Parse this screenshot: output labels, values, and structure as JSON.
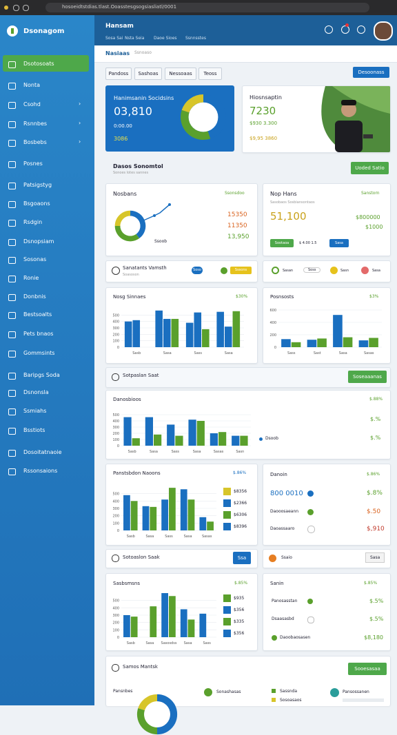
{
  "browser": {
    "url": "hosoeidtstdias.tlast.Ooasstesgsogsiasliatl/0001"
  },
  "sidebar": {
    "brand": "Dsonagom",
    "items": [
      "Dsotosoats",
      "Nonta",
      "Csohd",
      "Rsnnbes",
      "Bosbebs",
      "Posnes",
      "Patsigstyg",
      "Bsgoaons",
      "Rsdgin",
      "Dsnopsiam",
      "Sosonas",
      "Ronie",
      "Donbnis",
      "Bestsoalts",
      "Pets bnaos",
      "Gommsints",
      "Baripgs Soda",
      "Dsnonsla",
      "Ssmiahs",
      "Bsstiots",
      "Dosoitatnaoie",
      "Rssonsaions"
    ]
  },
  "header": {
    "title": "Hansam",
    "links": [
      "Sosa Sai",
      "Nsta Seia",
      "Daoe Sioes",
      "Ssnnsstes"
    ]
  },
  "tabs": {
    "active": "Nasiaas",
    "other": "Ssnoaso"
  },
  "filters": [
    "Pandoss",
    "Sashoas",
    "Nessoaas",
    "Teoss"
  ],
  "primary_button": "Desoonass",
  "hero": {
    "title": "Hanimsanin Socidsins",
    "value": "03,810",
    "sub": "0:00.00",
    "foot": "3086",
    "donut": {
      "values": [
        45,
        35,
        20
      ],
      "colors": [
        "#1a6fc0",
        "#5aa02c",
        "#d7c52a"
      ]
    }
  },
  "profile": {
    "title": "Hiosnsaptin",
    "value": "7230",
    "line1": "$930 3.300",
    "line2": "$9,95 3860"
  },
  "section1": {
    "title": "Dasos Sonomtol",
    "sub": "Sonoes lotes sannes",
    "button": "Uoded Satio"
  },
  "nosbans": {
    "title": "Nosbans",
    "tag": "Ssonsdoo",
    "caption": "Ssoob",
    "values": [
      "15350",
      "11350",
      "13,950"
    ],
    "donut": {
      "values": [
        40,
        35,
        25
      ],
      "colors": [
        "#1a6fc0",
        "#5aa02c",
        "#d7c52a"
      ]
    }
  },
  "nophans": {
    "title": "Nop Hans",
    "tag": "Sanstorn",
    "sub": "Sasobaos Sosbiansontaos",
    "value": "51,100",
    "right1": "$800000",
    "right2": "$1000",
    "btn1": "Sootaoa",
    "btn2": "Sasa",
    "mid": "$ 4.00 1.5"
  },
  "chips_left": {
    "title": "Sanatants Vamsth",
    "sub": "Soasoson",
    "chips": [
      "Soso",
      "Sssons"
    ]
  },
  "chips_right": {
    "chips": [
      "Sasan",
      "Soss",
      "Sasn",
      "Sasa"
    ]
  },
  "charts": {
    "sales": {
      "title": "Nosg Sinnaes",
      "badge": "$30%",
      "categories": [
        "Sasb",
        "Sasa",
        "Sass",
        "Sasa"
      ],
      "ylim": [
        0,
        600
      ],
      "yticks": [
        0,
        100,
        200,
        300,
        400,
        500
      ],
      "series": [
        {
          "color": "#1a6fc0",
          "values": [
            400,
            570,
            380,
            550
          ]
        },
        {
          "color": "#1a6fc0",
          "values": [
            420,
            440,
            540,
            320
          ]
        },
        {
          "color": "#5aa02c",
          "values": [
            0,
            440,
            280,
            560
          ]
        }
      ]
    },
    "region": {
      "title": "Posnsosts",
      "badge": "$3%",
      "categories": [
        "Sass",
        "Sast",
        "Sasa",
        "Sasas"
      ],
      "ylim": [
        0,
        600
      ],
      "yticks": [
        0,
        200,
        400,
        600
      ],
      "series": [
        {
          "color": "#1a6fc0",
          "values": [
            130,
            120,
            520,
            110
          ]
        },
        {
          "color": "#5aa02c",
          "values": [
            80,
            140,
            160,
            150
          ]
        }
      ]
    },
    "wide": {
      "title": "Danosbioos",
      "badge": "$.88%",
      "legend": "Dsoob",
      "categories": [
        "Sasb",
        "Sasa",
        "Sass",
        "Sasa",
        "Sasas",
        "Sasn"
      ],
      "ylim": [
        0,
        600
      ],
      "yticks": [
        0,
        100,
        200,
        300,
        400,
        500
      ],
      "series": [
        {
          "color": "#1a6fc0",
          "values": [
            460,
            460,
            340,
            420,
            200,
            160
          ]
        },
        {
          "color": "#5aa02c",
          "values": [
            120,
            180,
            160,
            400,
            220,
            160
          ]
        }
      ],
      "right": [
        "$.%",
        "$.%"
      ]
    },
    "revenue": {
      "title": "Panstsbdon Naoons",
      "badge": "$.86%",
      "categories": [
        "Sasb",
        "Sasa",
        "Sass",
        "Sasa",
        "Sasas"
      ],
      "ylim": [
        0,
        600
      ],
      "yticks": [
        0,
        100,
        200,
        300,
        400,
        500
      ],
      "series": [
        {
          "color": "#1a6fc0",
          "values": [
            480,
            330,
            420,
            560,
            180
          ]
        },
        {
          "color": "#5aa02c",
          "values": [
            400,
            320,
            580,
            420,
            120
          ]
        }
      ],
      "legend": [
        "$8356",
        "$2366",
        "$6306",
        "$8396"
      ],
      "legend_colors": [
        "#d7c52a",
        "#1a6fc0",
        "#5aa02c",
        "#1a6fc0"
      ]
    },
    "bottom": {
      "title": "Sasbsmsns",
      "badge": "$.85%",
      "categories": [
        "Sasb",
        "Sasa",
        "Sasosdss",
        "Sasa",
        "Sass"
      ],
      "ylim": [
        0,
        600
      ],
      "yticks": [
        0,
        100,
        200,
        300,
        400,
        500
      ],
      "series": [
        {
          "color": "#1a6fc0",
          "values": [
            300,
            0,
            600,
            380,
            320
          ]
        },
        {
          "color": "#5aa02c",
          "values": [
            280,
            420,
            560,
            240,
            0
          ]
        }
      ],
      "legend": [
        "$935",
        "$356",
        "$335",
        "$356"
      ],
      "legend_colors": [
        "#5aa02c",
        "#1a6fc0",
        "#5aa02c",
        "#1a6fc0"
      ]
    }
  },
  "danoin": {
    "title": "Danoin",
    "badge": "$.86%",
    "rows": [
      [
        "800 0010",
        "$.8%"
      ],
      [
        "Daooosaeann",
        "$.50"
      ],
      [
        "Daoassaaro",
        "$,910"
      ]
    ]
  },
  "section2": {
    "title": "Sotpaslan Saat",
    "button": "Soseaaanas"
  },
  "row3": {
    "title": "Sotoaslon Saak",
    "button": "Ssa",
    "chip": "Ssaio",
    "chip2": "Sasa"
  },
  "sanin": {
    "title": "Sanin",
    "badge": "$.85%",
    "rows": [
      [
        "Panosasstan",
        "$.5%"
      ],
      [
        "Dsaasasbd",
        "$.5%"
      ],
      [
        "Daoobaosasen",
        "$8,180"
      ]
    ]
  },
  "section3": {
    "title": "Samos Mantsk",
    "button": "Sooesasaa",
    "bottom_title": "Pansnbes",
    "items": [
      "Sonashasas",
      "Sassnda",
      "Sosoasaos",
      "Pansossanen"
    ],
    "donut": {
      "values": [
        50,
        30,
        20
      ],
      "colors": [
        "#1a6fc0",
        "#5aa02c",
        "#d7c52a"
      ]
    }
  }
}
